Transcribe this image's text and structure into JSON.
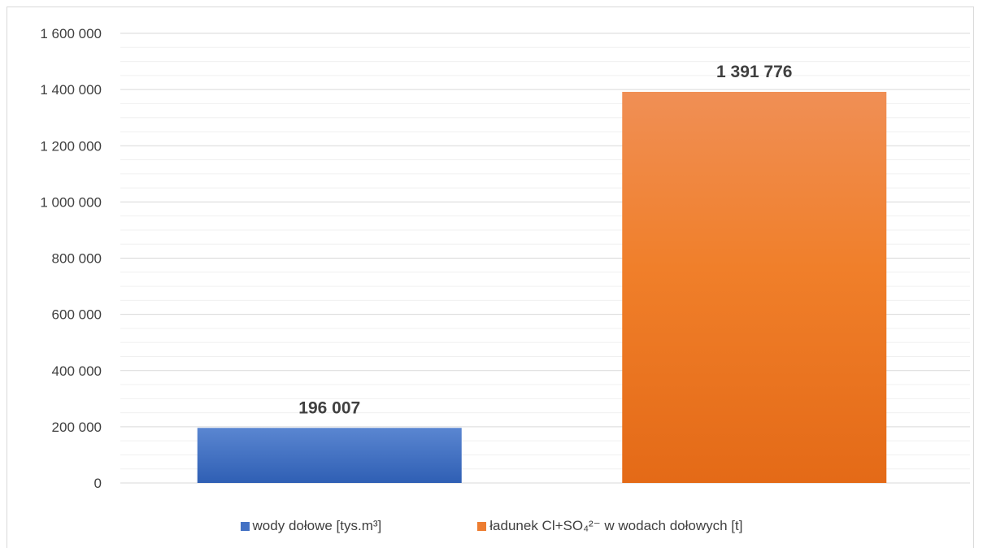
{
  "chart_data": {
    "type": "bar",
    "title": "",
    "xlabel": "",
    "ylabel": "",
    "ylim": [
      0,
      1600000
    ],
    "y_ticks": [
      0,
      200000,
      400000,
      600000,
      800000,
      1000000,
      1200000,
      1400000,
      1600000
    ],
    "y_tick_labels": [
      "0",
      "200 000",
      "400 000",
      "600 000",
      "800 000",
      "1 000 000",
      "1 200 000",
      "1 400 000",
      "1 600 000"
    ],
    "grid": true,
    "minor_grid": true,
    "legend_position": "bottom",
    "series": [
      {
        "name": "wody dołowe [tys.m³]",
        "value": 196007,
        "label": "196 007",
        "color": "#4472c4"
      },
      {
        "name": "ładunek Cl+SO₄²⁻ w wodach dołowych [t]",
        "value": 1391776,
        "label": "1 391 776",
        "color": "#ed7d31"
      }
    ]
  }
}
